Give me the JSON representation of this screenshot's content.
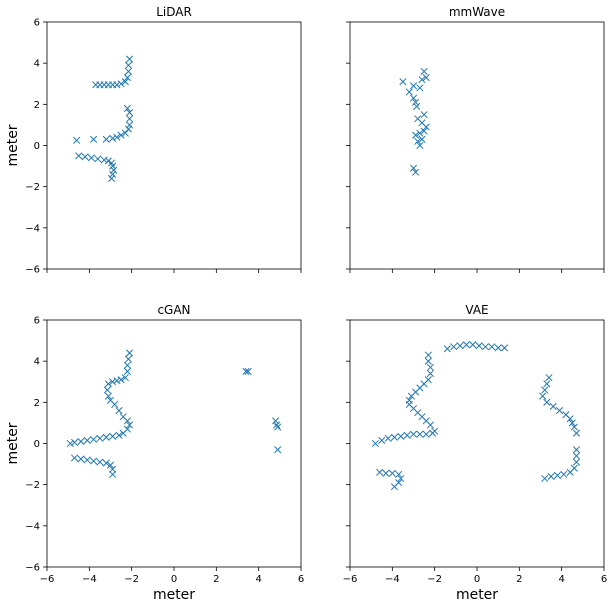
{
  "chart_data": [
    {
      "type": "scatter",
      "title": "LiDAR",
      "xlabel": "",
      "ylabel": "meter",
      "xlim": [
        -6,
        6
      ],
      "ylim": [
        -6,
        6
      ],
      "xticks": [],
      "yticks": [
        "−6",
        "−4",
        "−2",
        "0",
        "2",
        "4",
        "6"
      ],
      "marker": "x",
      "color": "#1f77b4",
      "grid": false,
      "points": [
        [
          -2.1,
          4.2
        ],
        [
          -2.15,
          3.9
        ],
        [
          -2.15,
          3.6
        ],
        [
          -2.2,
          3.3
        ],
        [
          -2.3,
          3.1
        ],
        [
          -2.5,
          3.0
        ],
        [
          -2.7,
          2.95
        ],
        [
          -2.9,
          2.95
        ],
        [
          -3.1,
          2.95
        ],
        [
          -3.3,
          2.95
        ],
        [
          -3.5,
          2.95
        ],
        [
          -3.7,
          2.95
        ],
        [
          -2.2,
          1.8
        ],
        [
          -2.1,
          1.6
        ],
        [
          -2.1,
          1.3
        ],
        [
          -2.1,
          1.0
        ],
        [
          -2.15,
          0.8
        ],
        [
          -2.3,
          0.6
        ],
        [
          -2.5,
          0.5
        ],
        [
          -2.7,
          0.4
        ],
        [
          -2.9,
          0.35
        ],
        [
          -3.2,
          0.3
        ],
        [
          -3.8,
          0.3
        ],
        [
          -4.6,
          0.25
        ],
        [
          -4.5,
          -0.5
        ],
        [
          -4.2,
          -0.55
        ],
        [
          -3.9,
          -0.6
        ],
        [
          -3.6,
          -0.65
        ],
        [
          -3.3,
          -0.7
        ],
        [
          -3.1,
          -0.75
        ],
        [
          -2.95,
          -0.85
        ],
        [
          -2.9,
          -1.0
        ],
        [
          -2.85,
          -1.2
        ],
        [
          -2.9,
          -1.4
        ],
        [
          -2.95,
          -1.6
        ]
      ]
    },
    {
      "type": "scatter",
      "title": "mmWave",
      "xlabel": "",
      "ylabel": "",
      "xlim": [
        -6,
        6
      ],
      "ylim": [
        -6,
        6
      ],
      "xticks": [],
      "yticks": [],
      "marker": "x",
      "color": "#1f77b4",
      "grid": false,
      "points": [
        [
          -3.5,
          3.1
        ],
        [
          -3.2,
          2.6
        ],
        [
          -3.0,
          2.9
        ],
        [
          -2.7,
          2.8
        ],
        [
          -2.5,
          3.6
        ],
        [
          -2.4,
          3.3
        ],
        [
          -2.6,
          3.2
        ],
        [
          -3.0,
          2.3
        ],
        [
          -2.9,
          2.1
        ],
        [
          -2.85,
          1.9
        ],
        [
          -2.5,
          1.5
        ],
        [
          -2.8,
          1.3
        ],
        [
          -2.6,
          1.1
        ],
        [
          -2.4,
          0.9
        ],
        [
          -2.5,
          0.7
        ],
        [
          -2.7,
          0.6
        ],
        [
          -2.9,
          0.5
        ],
        [
          -2.6,
          0.3
        ],
        [
          -2.8,
          0.2
        ],
        [
          -2.7,
          0.0
        ],
        [
          -3.0,
          -1.1
        ],
        [
          -2.9,
          -1.3
        ]
      ]
    },
    {
      "type": "scatter",
      "title": "cGAN",
      "xlabel": "meter",
      "ylabel": "meter",
      "xlim": [
        -6,
        6
      ],
      "ylim": [
        -6,
        6
      ],
      "xticks": [
        "−6",
        "−4",
        "−2",
        "0",
        "2",
        "4",
        "6"
      ],
      "yticks": [
        "−6",
        "−4",
        "−2",
        "0",
        "2",
        "4",
        "6"
      ],
      "marker": "x",
      "color": "#1f77b4",
      "grid": false,
      "points": [
        [
          -2.1,
          4.4
        ],
        [
          -2.15,
          4.1
        ],
        [
          -2.2,
          3.8
        ],
        [
          -2.2,
          3.5
        ],
        [
          -2.3,
          3.2
        ],
        [
          -2.5,
          3.1
        ],
        [
          -2.7,
          3.05
        ],
        [
          -2.9,
          3.0
        ],
        [
          -3.1,
          2.9
        ],
        [
          -3.15,
          2.6
        ],
        [
          -3.1,
          2.3
        ],
        [
          -3.0,
          2.1
        ],
        [
          -2.8,
          1.9
        ],
        [
          -2.6,
          1.6
        ],
        [
          -2.4,
          1.3
        ],
        [
          -2.2,
          1.1
        ],
        [
          -2.1,
          0.9
        ],
        [
          -2.2,
          0.7
        ],
        [
          -2.4,
          0.5
        ],
        [
          -2.6,
          0.4
        ],
        [
          -2.9,
          0.35
        ],
        [
          -3.2,
          0.3
        ],
        [
          -3.5,
          0.25
        ],
        [
          -3.8,
          0.2
        ],
        [
          -4.1,
          0.15
        ],
        [
          -4.4,
          0.1
        ],
        [
          -4.7,
          0.05
        ],
        [
          -4.9,
          0.0
        ],
        [
          -4.7,
          -0.7
        ],
        [
          -4.4,
          -0.75
        ],
        [
          -4.1,
          -0.8
        ],
        [
          -3.8,
          -0.85
        ],
        [
          -3.5,
          -0.9
        ],
        [
          -3.2,
          -0.95
        ],
        [
          -3.0,
          -1.05
        ],
        [
          -2.9,
          -1.25
        ],
        [
          -2.9,
          -1.5
        ],
        [
          3.4,
          3.5
        ],
        [
          3.5,
          3.5
        ],
        [
          4.8,
          1.1
        ],
        [
          4.85,
          0.9
        ],
        [
          4.9,
          0.8
        ],
        [
          4.9,
          -0.3
        ]
      ]
    },
    {
      "type": "scatter",
      "title": "VAE",
      "xlabel": "meter",
      "ylabel": "",
      "xlim": [
        -6,
        6
      ],
      "ylim": [
        -6,
        6
      ],
      "xticks": [
        "−6",
        "−4",
        "−2",
        "0",
        "2",
        "4",
        "6"
      ],
      "yticks": [],
      "marker": "x",
      "color": "#1f77b4",
      "grid": false,
      "points": [
        [
          -1.4,
          4.6
        ],
        [
          -1.1,
          4.7
        ],
        [
          -0.8,
          4.75
        ],
        [
          -0.5,
          4.8
        ],
        [
          -0.2,
          4.8
        ],
        [
          0.1,
          4.75
        ],
        [
          0.4,
          4.7
        ],
        [
          0.7,
          4.7
        ],
        [
          1.0,
          4.65
        ],
        [
          1.3,
          4.65
        ],
        [
          -2.3,
          4.3
        ],
        [
          -2.3,
          4.0
        ],
        [
          -2.2,
          3.7
        ],
        [
          -2.2,
          3.4
        ],
        [
          -2.3,
          3.1
        ],
        [
          -2.5,
          2.9
        ],
        [
          -2.7,
          2.7
        ],
        [
          -2.9,
          2.5
        ],
        [
          -3.1,
          2.3
        ],
        [
          -3.2,
          2.1
        ],
        [
          -3.2,
          1.9
        ],
        [
          -3.0,
          1.7
        ],
        [
          -2.8,
          1.5
        ],
        [
          -2.6,
          1.3
        ],
        [
          -2.4,
          1.1
        ],
        [
          -2.2,
          0.9
        ],
        [
          -2.0,
          0.6
        ],
        [
          -2.1,
          0.5
        ],
        [
          -2.4,
          0.45
        ],
        [
          -2.7,
          0.45
        ],
        [
          -3.0,
          0.45
        ],
        [
          -3.3,
          0.4
        ],
        [
          -3.6,
          0.35
        ],
        [
          -3.9,
          0.3
        ],
        [
          -4.2,
          0.25
        ],
        [
          -4.5,
          0.15
        ],
        [
          -4.8,
          0.0
        ],
        [
          -4.6,
          -1.4
        ],
        [
          -4.3,
          -1.45
        ],
        [
          -4.0,
          -1.45
        ],
        [
          -3.7,
          -1.5
        ],
        [
          -3.6,
          -1.7
        ],
        [
          -3.7,
          -1.9
        ],
        [
          -3.9,
          -2.1
        ],
        [
          3.4,
          3.2
        ],
        [
          3.3,
          2.9
        ],
        [
          3.2,
          2.6
        ],
        [
          3.1,
          2.3
        ],
        [
          3.3,
          2.0
        ],
        [
          3.6,
          1.8
        ],
        [
          3.9,
          1.6
        ],
        [
          4.2,
          1.4
        ],
        [
          4.4,
          1.2
        ],
        [
          4.5,
          1.0
        ],
        [
          4.6,
          0.8
        ],
        [
          4.7,
          0.5
        ],
        [
          4.7,
          -0.3
        ],
        [
          4.7,
          -0.6
        ],
        [
          4.7,
          -0.9
        ],
        [
          4.6,
          -1.2
        ],
        [
          4.4,
          -1.4
        ],
        [
          4.1,
          -1.5
        ],
        [
          3.8,
          -1.55
        ],
        [
          3.5,
          -1.6
        ],
        [
          3.2,
          -1.7
        ]
      ]
    }
  ]
}
